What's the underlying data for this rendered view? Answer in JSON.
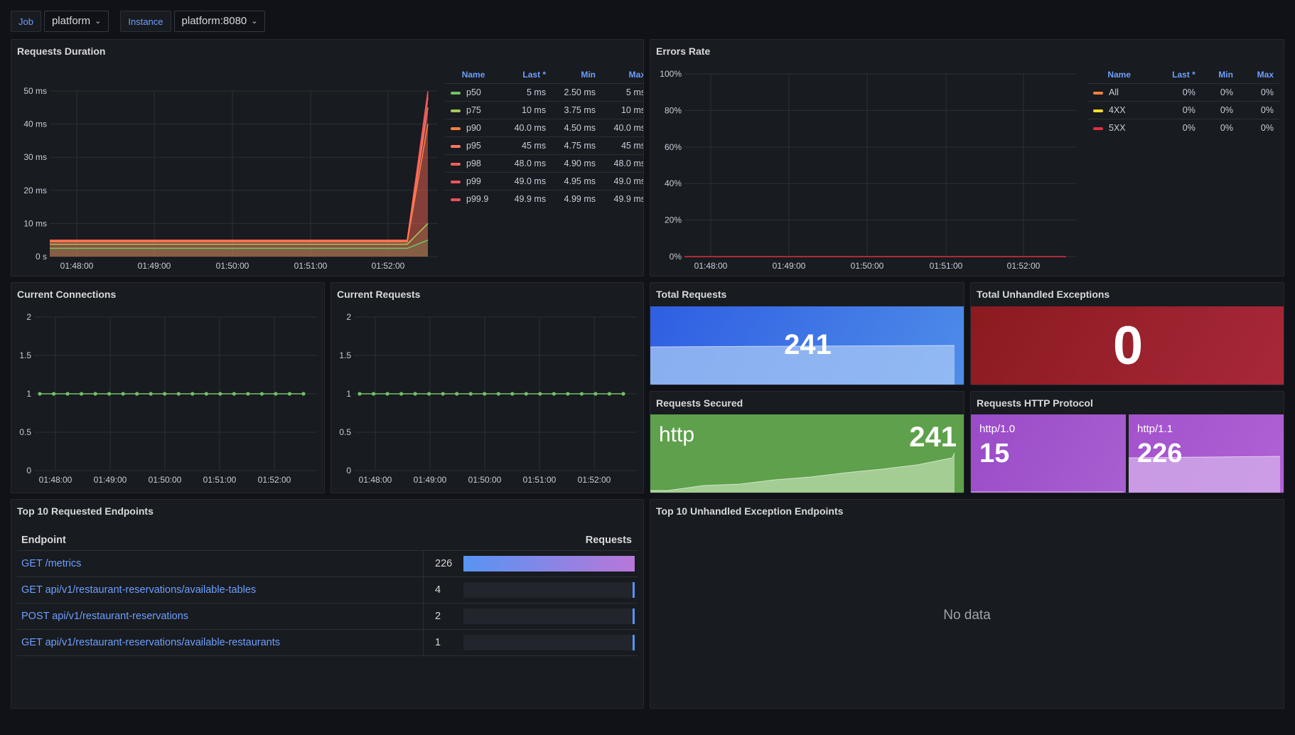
{
  "variables": {
    "job": {
      "label": "Job",
      "value": "platform"
    },
    "instance": {
      "label": "Instance",
      "value": "platform:8080"
    }
  },
  "panels": {
    "requests_duration": {
      "title": "Requests Duration",
      "y_ticks": [
        "50 ms",
        "40 ms",
        "30 ms",
        "20 ms",
        "10 ms",
        "0 s"
      ],
      "x_ticks": [
        "01:48:00",
        "01:49:00",
        "01:50:00",
        "01:51:00",
        "01:52:00"
      ],
      "legend_headers": {
        "name": "Name",
        "last": "Last *",
        "min": "Min",
        "max": "Max"
      },
      "legend": [
        {
          "name": "p50",
          "last": "5 ms",
          "min": "2.50 ms",
          "max": "5 ms",
          "color": "#73bf69"
        },
        {
          "name": "p75",
          "last": "10 ms",
          "min": "3.75 ms",
          "max": "10 ms",
          "color": "#a8c75d"
        },
        {
          "name": "p90",
          "last": "40.0 ms",
          "min": "4.50 ms",
          "max": "40.0 ms",
          "color": "#ff7f3f"
        },
        {
          "name": "p95",
          "last": "45 ms",
          "min": "4.75 ms",
          "max": "45 ms",
          "color": "#ff7563"
        },
        {
          "name": "p98",
          "last": "48.0 ms",
          "min": "4.90 ms",
          "max": "48.0 ms",
          "color": "#f2605f"
        },
        {
          "name": "p99",
          "last": "49.0 ms",
          "min": "4.95 ms",
          "max": "49.0 ms",
          "color": "#f0525d"
        },
        {
          "name": "p99.9",
          "last": "49.9 ms",
          "min": "4.99 ms",
          "max": "49.9 ms",
          "color": "#e8505a"
        }
      ]
    },
    "errors_rate": {
      "title": "Errors Rate",
      "y_ticks": [
        "100%",
        "80%",
        "60%",
        "40%",
        "20%",
        "0%"
      ],
      "x_ticks": [
        "01:48:00",
        "01:49:00",
        "01:50:00",
        "01:51:00",
        "01:52:00"
      ],
      "legend_headers": {
        "name": "Name",
        "last": "Last *",
        "min": "Min",
        "max": "Max"
      },
      "legend": [
        {
          "name": "All",
          "last": "0%",
          "min": "0%",
          "max": "0%",
          "color": "#ff7f3f"
        },
        {
          "name": "4XX",
          "last": "0%",
          "min": "0%",
          "max": "0%",
          "color": "#fade2a"
        },
        {
          "name": "5XX",
          "last": "0%",
          "min": "0%",
          "max": "0%",
          "color": "#e02f44"
        }
      ]
    },
    "current_connections": {
      "title": "Current Connections",
      "y_ticks": [
        "2",
        "1.5",
        "1",
        "0.5",
        "0"
      ],
      "x_ticks": [
        "01:48:00",
        "01:49:00",
        "01:50:00",
        "01:51:00",
        "01:52:00"
      ]
    },
    "current_requests": {
      "title": "Current Requests",
      "y_ticks": [
        "2",
        "1.5",
        "1",
        "0.5",
        "0"
      ],
      "x_ticks": [
        "01:48:00",
        "01:49:00",
        "01:50:00",
        "01:51:00",
        "01:52:00"
      ]
    },
    "total_requests": {
      "title": "Total Requests",
      "value": "241"
    },
    "total_exceptions": {
      "title": "Total Unhandled Exceptions",
      "value": "0"
    },
    "requests_secured": {
      "title": "Requests Secured",
      "label": "http",
      "value": "241"
    },
    "http_protocol": {
      "title": "Requests HTTP Protocol",
      "items": [
        {
          "label": "http/1.0",
          "value": "15"
        },
        {
          "label": "http/1.1",
          "value": "226"
        }
      ]
    },
    "top_endpoints": {
      "title": "Top 10 Requested Endpoints",
      "col_endpoint": "Endpoint",
      "col_requests": "Requests",
      "rows": [
        {
          "endpoint": "GET /metrics",
          "requests": "226",
          "ratio": 1.0
        },
        {
          "endpoint": "GET api/v1/restaurant-reservations/available-tables",
          "requests": "4",
          "ratio": 0.018
        },
        {
          "endpoint": "POST api/v1/restaurant-reservations",
          "requests": "2",
          "ratio": 0.009
        },
        {
          "endpoint": "GET api/v1/restaurant-reservations/available-restaurants",
          "requests": "1",
          "ratio": 0.004
        }
      ]
    },
    "top_exceptions": {
      "title": "Top 10 Unhandled Exception Endpoints",
      "no_data": "No data"
    }
  },
  "chart_data": [
    {
      "type": "area",
      "title": "Requests Duration",
      "x": [
        "01:47:45",
        "01:48:00",
        "01:49:00",
        "01:50:00",
        "01:51:00",
        "01:52:00",
        "01:52:10",
        "01:52:20"
      ],
      "series": [
        {
          "name": "p50",
          "values": [
            2.5,
            2.5,
            2.5,
            2.5,
            2.5,
            2.5,
            2.5,
            5
          ]
        },
        {
          "name": "p75",
          "values": [
            3.75,
            3.75,
            3.75,
            3.75,
            3.75,
            3.75,
            3.75,
            10
          ]
        },
        {
          "name": "p90",
          "values": [
            4.5,
            4.5,
            4.5,
            4.5,
            4.5,
            4.5,
            4.5,
            40
          ]
        },
        {
          "name": "p95",
          "values": [
            4.75,
            4.75,
            4.75,
            4.75,
            4.75,
            4.75,
            4.75,
            45
          ]
        },
        {
          "name": "p98",
          "values": [
            4.9,
            4.9,
            4.9,
            4.9,
            4.9,
            4.9,
            4.9,
            48
          ]
        },
        {
          "name": "p99",
          "values": [
            4.95,
            4.95,
            4.95,
            4.95,
            4.95,
            4.95,
            4.95,
            49
          ]
        },
        {
          "name": "p99.9",
          "values": [
            4.99,
            4.99,
            4.99,
            4.99,
            4.99,
            4.99,
            4.99,
            49.9
          ]
        }
      ],
      "ylim": [
        0,
        50
      ]
    },
    {
      "type": "line",
      "title": "Errors Rate",
      "x": [
        "01:48:00",
        "01:49:00",
        "01:50:00",
        "01:51:00",
        "01:52:00"
      ],
      "series": [
        {
          "name": "All",
          "values": [
            0,
            0,
            0,
            0,
            0
          ]
        },
        {
          "name": "4XX",
          "values": [
            0,
            0,
            0,
            0,
            0
          ]
        },
        {
          "name": "5XX",
          "values": [
            0,
            0,
            0,
            0,
            0
          ]
        }
      ],
      "ylim": [
        0,
        100
      ]
    },
    {
      "type": "line",
      "title": "Current Connections",
      "values": [
        1,
        1,
        1,
        1,
        1,
        1,
        1,
        1,
        1,
        1,
        1,
        1,
        1,
        1,
        1,
        1,
        1,
        1,
        1,
        1
      ],
      "ylim": [
        0,
        2
      ]
    },
    {
      "type": "line",
      "title": "Current Requests",
      "values": [
        1,
        1,
        1,
        1,
        1,
        1,
        1,
        1,
        1,
        1,
        1,
        1,
        1,
        1,
        1,
        1,
        1,
        1,
        1,
        1
      ],
      "ylim": [
        0,
        2
      ]
    }
  ],
  "colors": {
    "blue": "#3871dc",
    "red": "#a3222c",
    "green": "#5ea04b",
    "purple": "#a352cc",
    "accent": "#6e9fff"
  }
}
